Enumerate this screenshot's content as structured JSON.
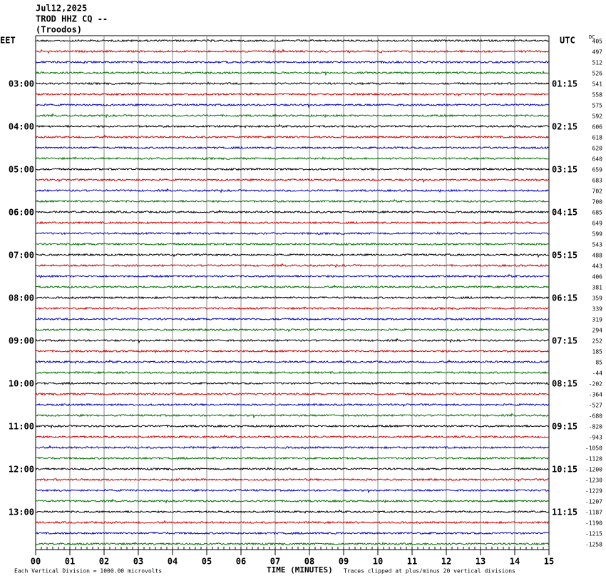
{
  "header": {
    "date": "Jul12,2025",
    "station": "TROD HHZ CQ --",
    "location": "(Troodos)"
  },
  "left_axis": {
    "title": "EET",
    "labels": [
      "03:00",
      "04:00",
      "05:00",
      "06:00",
      "07:00",
      "08:00",
      "09:00",
      "10:00",
      "11:00",
      "12:00",
      "13:00"
    ]
  },
  "right_axis": {
    "title": "UTC",
    "labels": [
      "01:15",
      "02:15",
      "03:15",
      "04:15",
      "05:15",
      "06:15",
      "07:15",
      "08:15",
      "09:15",
      "10:15",
      "11:15"
    ]
  },
  "dc_column": {
    "title": "DC",
    "values": [
      405,
      497,
      512,
      526,
      541,
      558,
      575,
      592,
      606,
      618,
      620,
      640,
      659,
      683,
      702,
      700,
      685,
      649,
      599,
      543,
      488,
      443,
      406,
      381,
      359,
      339,
      319,
      294,
      252,
      185,
      85,
      -44,
      -202,
      -364,
      -527,
      -680,
      -820,
      -943,
      -1050,
      -1120,
      -1200,
      -1230,
      -1229,
      -1207,
      -1187,
      -1190,
      -1215,
      -1258
    ]
  },
  "x_axis": {
    "title": "TIME (MINUTES)",
    "labels": [
      "00",
      "01",
      "02",
      "03",
      "04",
      "05",
      "06",
      "07",
      "08",
      "09",
      "10",
      "11",
      "12",
      "13",
      "14",
      "15"
    ]
  },
  "footer": {
    "scale_note": "Each Vertical Division = 1000.00 microvolts",
    "clip_note": "Traces clipped at plus/minus 20 vertical divisions"
  }
}
